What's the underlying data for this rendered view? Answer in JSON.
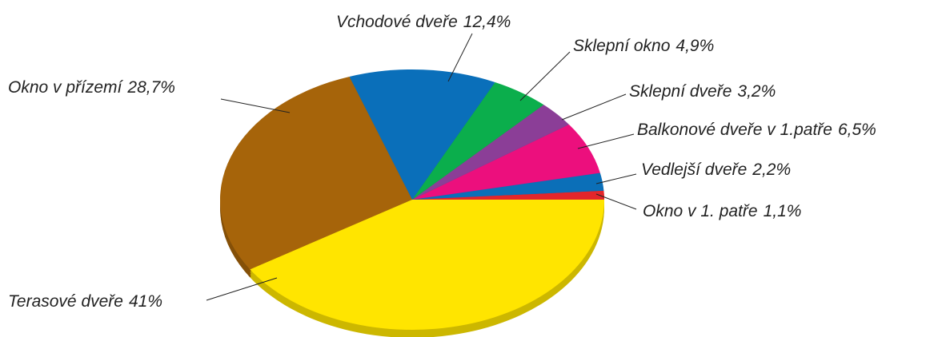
{
  "chart_data": {
    "type": "pie",
    "categories": [
      "Okno v 1. patře",
      "Vedlejší dveře",
      "Balkonové dveře v 1.patře",
      "Sklepní dveře",
      "Sklepní okno",
      "Vchodové dveře",
      "Okno v přízemí",
      "Terasové dveře"
    ],
    "values": [
      1.1,
      2.2,
      6.5,
      3.2,
      4.9,
      12.4,
      28.7,
      41
    ],
    "value_labels": [
      "1,1%",
      "2,2%",
      "6,5%",
      "3,2%",
      "4,9%",
      "12,4%",
      "28,7%",
      "41%"
    ],
    "colors": [
      "#e3262b",
      "#0b6fb8",
      "#ec0f7d",
      "#8b3e97",
      "#0bae4c",
      "#0a6fba",
      "#a6640a",
      "#ffe500"
    ]
  }
}
